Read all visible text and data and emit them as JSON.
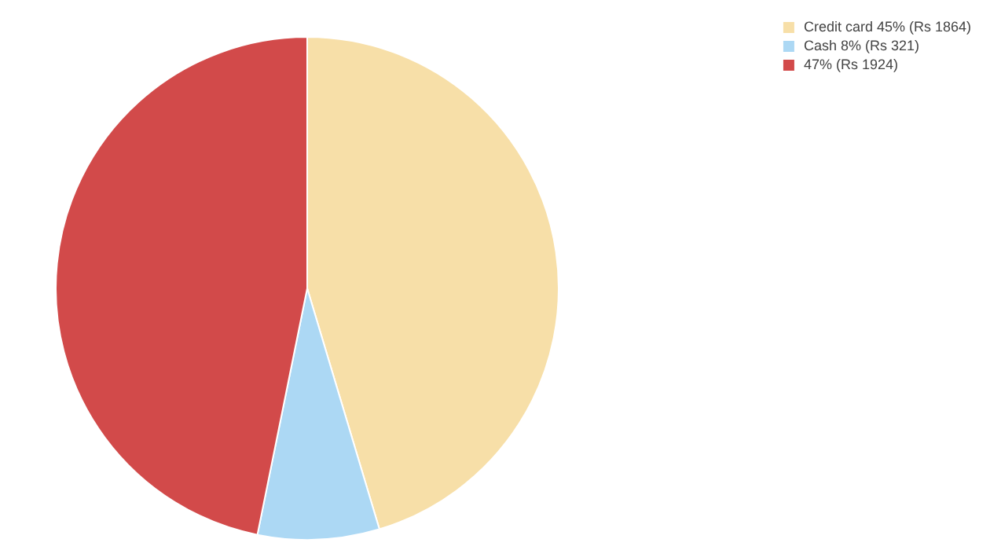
{
  "chart_data": {
    "type": "pie",
    "categories": [
      "Credit card 45% (Rs 1864)",
      "Cash 8% (Rs 321)",
      "47% (Rs 1924)"
    ],
    "values": [
      1864,
      321,
      1924
    ],
    "colors": [
      "#f7dfa8",
      "#acd8f4",
      "#d24a4a"
    ],
    "legend": "top right"
  }
}
